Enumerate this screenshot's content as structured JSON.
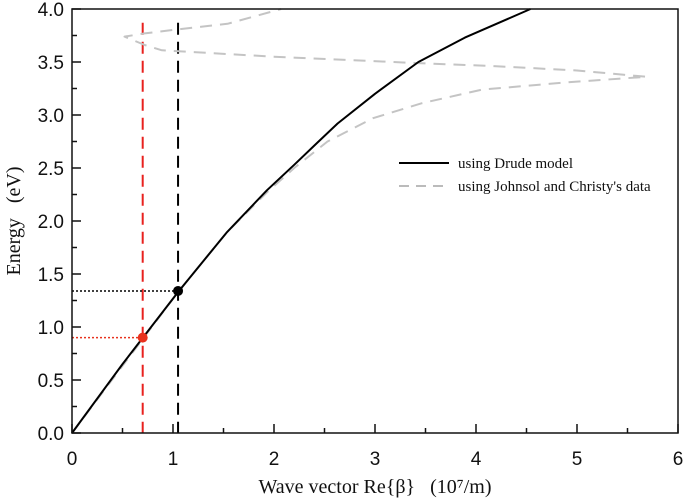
{
  "chart_data": {
    "type": "line",
    "title": "",
    "xlabel": "Wave vector Re{β}   (10⁷/m)",
    "ylabel": "Energy   (eV)",
    "xlim": [
      0,
      6
    ],
    "ylim": [
      0,
      4.0
    ],
    "xticks": [
      "0",
      "1",
      "2",
      "3",
      "4",
      "5",
      "6"
    ],
    "yticks": [
      "0.0",
      "0.5",
      "1.0",
      "1.5",
      "2.0",
      "2.5",
      "3.0",
      "3.5",
      "4.0"
    ],
    "grid": false,
    "legend_position": "right",
    "series": [
      {
        "name": "using Drude model",
        "color": "#000000",
        "style": "solid",
        "x": [
          0,
          0.5,
          1.05,
          1.53,
          1.93,
          2.2,
          2.43,
          2.63,
          3.0,
          3.43,
          3.89,
          4.54
        ],
        "y": [
          0,
          0.65,
          1.33,
          1.89,
          2.29,
          2.53,
          2.74,
          2.92,
          3.2,
          3.5,
          3.73,
          4.0
        ]
      },
      {
        "name": "using Johnsol and Christy's data",
        "color": "#c0c0c0",
        "style": "dashed",
        "x": [
          0,
          1.05,
          1.53,
          1.93,
          2.2,
          2.53,
          2.98,
          3.46,
          4.06,
          4.93,
          5.69,
          5.0,
          4.2,
          3.42,
          2.0,
          0.89,
          0.72,
          0.52,
          0.72,
          1.07,
          1.54,
          2.07
        ],
        "y": [
          0,
          1.33,
          1.89,
          2.27,
          2.5,
          2.75,
          2.97,
          3.11,
          3.24,
          3.31,
          3.36,
          3.42,
          3.46,
          3.49,
          3.55,
          3.61,
          3.66,
          3.74,
          3.77,
          3.81,
          3.86,
          4.0
        ]
      }
    ],
    "markers": [
      {
        "x": 0.7,
        "y": 0.9,
        "color": "#e8321e"
      },
      {
        "x": 1.05,
        "y": 1.34,
        "color": "#000000"
      }
    ],
    "vlines": [
      {
        "x": 0.7,
        "color": "#e8211e",
        "y_top": 3.87
      },
      {
        "x": 1.05,
        "color": "#000000",
        "y_top": 3.87
      }
    ]
  }
}
